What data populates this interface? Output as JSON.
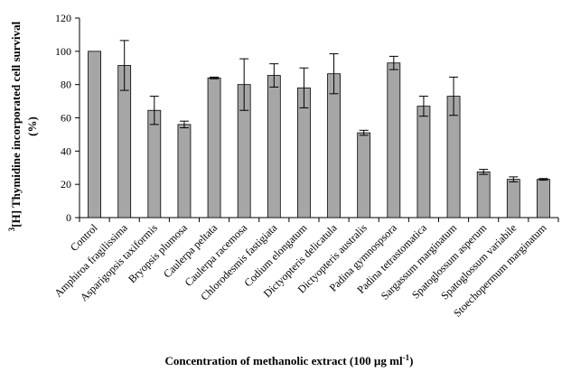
{
  "chart_data": {
    "type": "bar",
    "categories": [
      "Control",
      "Amphiroa fragilissima",
      "Asparigopsis taxiformis",
      "Bryopsis plumosa",
      "Caulerpa peltata",
      "Caulerpa racemosa",
      "Chlorodesmis fastigiata",
      "Codium elongatum",
      "Dictyopteris delicatula",
      "Dictyopteris australis",
      "Padina gymnospsora",
      "Padina tetrastomatica",
      "Sargassum marginatum",
      "Spatoglossum asperum",
      "Spatoglossum variabile",
      "Stoechopermum marginatum"
    ],
    "values": [
      100,
      91.5,
      64.5,
      56,
      84,
      80,
      85.5,
      78,
      86.5,
      51,
      93,
      67,
      73,
      27.5,
      23,
      23
    ],
    "errors": [
      0,
      15,
      8.5,
      2,
      0.5,
      15.5,
      7,
      12,
      12,
      1.5,
      4,
      6,
      11.5,
      1.5,
      1.5,
      0.5
    ],
    "ylim": [
      0,
      120
    ],
    "yticks": [
      "0",
      "20",
      "40",
      "60",
      "80",
      "100",
      "120"
    ],
    "ylabel_prefix": "3",
    "ylabel_line1": "[H] Thymidine incorporated cell survival",
    "ylabel_line2": "(%)",
    "xlabel_main": "Concentration of methanolic extract (100 µg ml",
    "xlabel_sup": "-1",
    "xlabel_end": ")",
    "grid": false,
    "legend": "none"
  }
}
